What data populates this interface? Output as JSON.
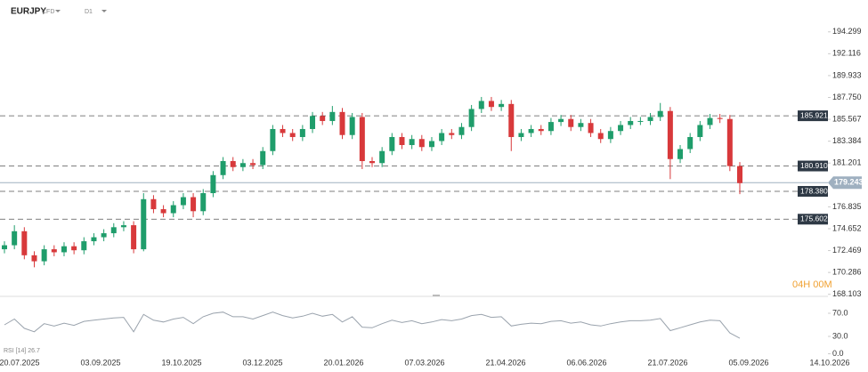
{
  "chart_data": {
    "type": "candlestick",
    "symbol": "EURJPY",
    "instrument_type": "CFD",
    "timeframe": "D1",
    "up_color": "#1f9d6b",
    "down_color": "#d8393b",
    "x_labels": [
      "20.07.2025",
      "03.09.2025",
      "19.10.2025",
      "03.12.2025",
      "20.01.2026",
      "07.03.2026",
      "21.04.2026",
      "06.06.2026",
      "21.07.2026",
      "05.09.2026",
      "14.10.2026"
    ],
    "open": [
      172.6,
      173.0,
      174.4,
      172.0,
      171.4,
      172.6,
      172.3,
      172.9,
      172.5,
      173.4,
      173.8,
      174.2,
      174.8,
      175.0,
      172.6,
      177.6,
      176.6,
      176.2,
      177.0,
      177.8,
      176.4,
      178.2,
      180.0,
      181.4,
      180.8,
      181.2,
      181.0,
      182.4,
      184.6,
      184.2,
      183.8,
      184.6,
      185.9,
      185.4,
      186.3,
      184.0,
      185.8,
      181.4,
      181.2,
      182.4,
      183.8,
      183.0,
      183.6,
      182.8,
      183.4,
      184.2,
      184.0,
      184.8,
      186.6,
      187.4,
      186.8,
      187.1,
      183.8,
      184.2,
      184.6,
      184.4,
      185.3,
      185.6,
      184.8,
      185.2,
      184.2,
      183.6,
      184.4,
      185.0,
      185.4,
      185.4,
      185.8,
      186.4,
      181.6,
      182.6,
      183.8,
      185.0,
      185.7,
      185.6,
      180.9
    ],
    "high": [
      173.4,
      175.0,
      174.8,
      172.4,
      173.0,
      173.0,
      173.3,
      173.3,
      173.8,
      174.2,
      174.6,
      175.2,
      175.4,
      175.4,
      178.2,
      178.0,
      177.0,
      177.4,
      178.2,
      178.2,
      178.6,
      180.4,
      181.8,
      181.8,
      181.6,
      181.6,
      182.8,
      185.0,
      185.0,
      184.6,
      185.0,
      186.3,
      186.3,
      186.9,
      186.7,
      186.2,
      186.2,
      181.8,
      182.8,
      184.2,
      184.2,
      184.0,
      184.0,
      183.8,
      184.6,
      184.6,
      185.2,
      187.0,
      187.8,
      187.8,
      187.5,
      187.5,
      184.6,
      185.0,
      185.0,
      185.7,
      186.0,
      186.0,
      185.6,
      185.6,
      184.6,
      184.8,
      185.4,
      185.8,
      185.8,
      186.2,
      187.2,
      186.8,
      183.0,
      184.2,
      185.4,
      186.1,
      186.1,
      186.0,
      181.3
    ],
    "low": [
      172.2,
      172.6,
      171.6,
      170.8,
      171.0,
      171.9,
      171.9,
      172.1,
      172.1,
      173.0,
      173.4,
      173.8,
      174.4,
      172.2,
      172.4,
      176.2,
      175.8,
      175.8,
      176.6,
      175.8,
      176.0,
      177.8,
      179.6,
      180.4,
      180.4,
      180.6,
      180.6,
      182.0,
      183.8,
      183.4,
      183.4,
      184.2,
      185.0,
      185.0,
      183.6,
      183.6,
      180.6,
      180.8,
      180.8,
      182.0,
      182.6,
      182.6,
      182.4,
      182.4,
      183.0,
      183.6,
      183.6,
      184.4,
      186.2,
      186.4,
      186.4,
      182.4,
      183.4,
      183.8,
      184.0,
      184.0,
      184.9,
      184.4,
      184.4,
      183.8,
      183.2,
      183.2,
      184.0,
      184.6,
      185.0,
      185.0,
      185.4,
      179.6,
      181.2,
      182.2,
      183.4,
      184.6,
      185.2,
      180.4,
      178.1
    ],
    "close": [
      173.0,
      174.4,
      172.0,
      171.4,
      172.6,
      172.3,
      172.9,
      172.5,
      173.4,
      173.8,
      174.2,
      174.8,
      175.0,
      172.6,
      177.6,
      176.6,
      176.2,
      177.0,
      177.8,
      176.4,
      178.2,
      180.0,
      181.4,
      180.8,
      181.2,
      181.0,
      182.4,
      184.6,
      184.2,
      183.8,
      184.6,
      185.9,
      185.4,
      186.3,
      184.0,
      185.8,
      181.4,
      181.2,
      182.4,
      183.8,
      183.0,
      183.6,
      182.8,
      183.4,
      184.2,
      184.0,
      184.8,
      186.6,
      187.4,
      186.8,
      187.1,
      183.8,
      184.2,
      184.6,
      184.4,
      185.3,
      185.6,
      184.8,
      185.2,
      184.2,
      183.6,
      184.4,
      185.0,
      185.4,
      185.4,
      185.8,
      186.4,
      181.6,
      182.6,
      183.8,
      185.0,
      185.7,
      185.6,
      180.9,
      179.2
    ],
    "ylim": [
      167.9,
      195.7
    ],
    "yticks": [
      {
        "value": 194.299,
        "label": "194.299"
      },
      {
        "value": 192.116,
        "label": "192.116"
      },
      {
        "value": 189.933,
        "label": "189.933"
      },
      {
        "value": 187.75,
        "label": "187.750"
      },
      {
        "value": 185.567,
        "label": "185.567"
      },
      {
        "value": 183.384,
        "label": "183.384"
      },
      {
        "value": 181.201,
        "label": "181.201"
      },
      {
        "value": 176.835,
        "label": "176.835"
      },
      {
        "value": 174.652,
        "label": "174.652"
      },
      {
        "value": 172.469,
        "label": "172.469"
      },
      {
        "value": 170.286,
        "label": "170.286"
      },
      {
        "value": 168.103,
        "label": "168.103"
      }
    ],
    "levels": [
      {
        "value": 185.921,
        "label": "185.921"
      },
      {
        "value": 180.91,
        "label": "180.910"
      },
      {
        "value": 178.38,
        "label": "178.380"
      },
      {
        "value": 175.602,
        "label": "175.602"
      }
    ],
    "last_price": {
      "value": 179.243,
      "label": "179.243"
    },
    "timer": "04H 00M",
    "indicator": {
      "label": "RSI [14] 26.7",
      "color": "#9aa3ad",
      "values": [
        50,
        60,
        44,
        38,
        52,
        48,
        53,
        49,
        56,
        58,
        60,
        62,
        63,
        38,
        68,
        58,
        55,
        60,
        63,
        52,
        64,
        70,
        72,
        64,
        64,
        60,
        66,
        72,
        66,
        62,
        65,
        70,
        65,
        68,
        55,
        64,
        46,
        45,
        52,
        58,
        54,
        57,
        52,
        55,
        59,
        57,
        60,
        66,
        68,
        63,
        64,
        48,
        51,
        53,
        52,
        56,
        57,
        53,
        55,
        50,
        48,
        52,
        55,
        57,
        57,
        58,
        61,
        40,
        45,
        50,
        55,
        58,
        57,
        36,
        26.7
      ],
      "ylim": [
        0,
        90
      ],
      "yticks": [
        {
          "value": 70,
          "label": "70.0"
        },
        {
          "value": 30,
          "label": "30.0"
        },
        {
          "value": 0,
          "label": "0.0"
        }
      ]
    }
  }
}
